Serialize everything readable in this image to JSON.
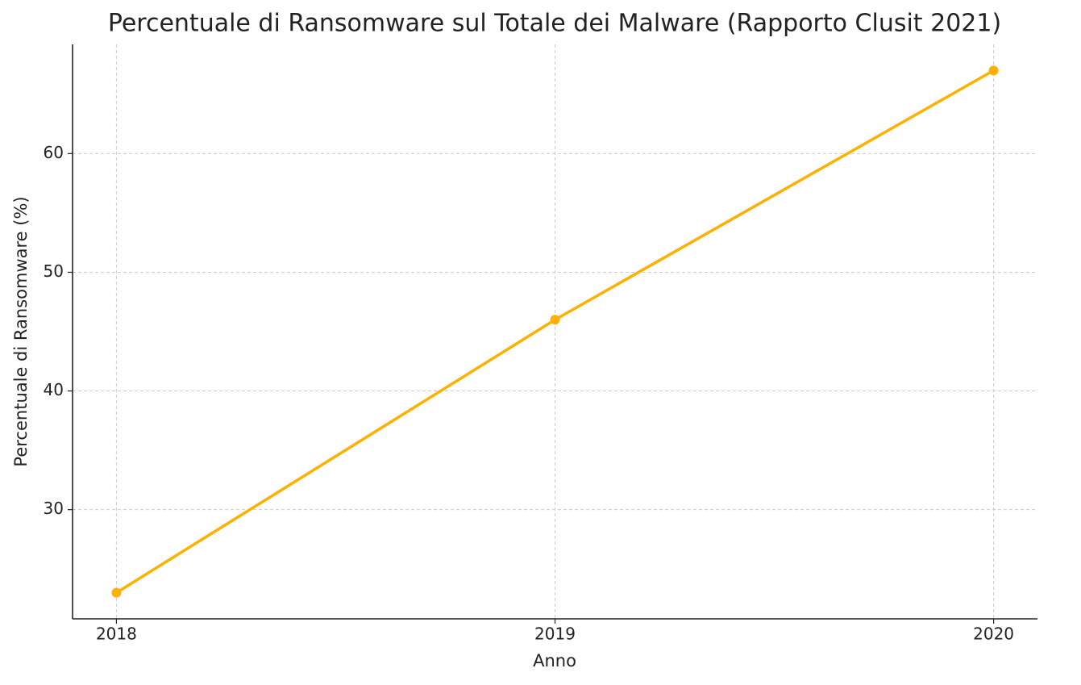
{
  "chart_data": {
    "type": "line",
    "title": "Percentuale di Ransomware sul Totale dei Malware (Rapporto Clusit 2021)",
    "xlabel": "Anno",
    "ylabel": "Percentuale di Ransomware (%)",
    "x": [
      2018,
      2019,
      2020
    ],
    "values": [
      23,
      46,
      67
    ],
    "color": "#FFB000",
    "xlim": [
      2017.9,
      2020.1
    ],
    "xticks": [
      2018,
      2019,
      2020
    ],
    "ylim": [
      20.8,
      69.2
    ],
    "yticks": [
      30,
      40,
      50,
      60
    ],
    "grid": true,
    "markers": true
  }
}
